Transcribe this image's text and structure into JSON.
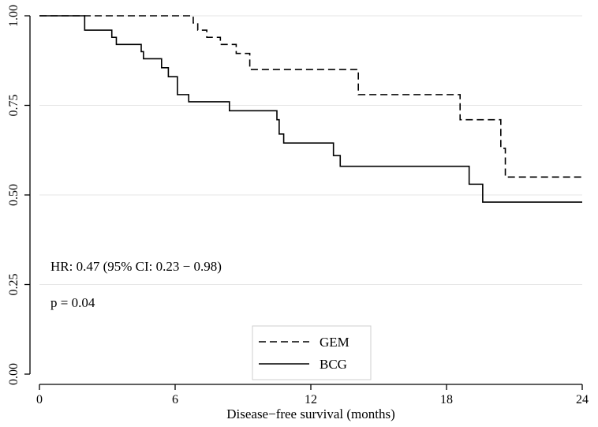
{
  "chart_data": {
    "type": "line",
    "title": "",
    "xlabel": "Disease−free survival (months)",
    "ylabel": "",
    "xlim": [
      0,
      24
    ],
    "ylim": [
      0,
      1
    ],
    "xticks": [
      0,
      6,
      12,
      18,
      24
    ],
    "xtick_labels": [
      "0",
      "6",
      "12",
      "18",
      "24"
    ],
    "yticks": [
      0,
      0.25,
      0.5,
      0.75,
      1
    ],
    "ytick_labels": [
      "0.00",
      "0.25",
      "0.50",
      "0.75",
      "1.00"
    ],
    "grid": "horizontal",
    "legend_position": "bottom-center",
    "annotations": [
      "HR: 0.47 (95% CI: 0.23 − 0.98)",
      "p = 0.04"
    ],
    "series": [
      {
        "name": "GEM",
        "style": "dashed",
        "step_x": [
          0,
          6.8,
          7.0,
          7.4,
          8.0,
          8.7,
          9.3,
          10.9,
          14.1,
          18.6,
          20.4,
          20.6,
          24
        ],
        "step_y": [
          1.0,
          0.98,
          0.96,
          0.94,
          0.92,
          0.895,
          0.85,
          0.85,
          0.78,
          0.71,
          0.63,
          0.55,
          0.55
        ]
      },
      {
        "name": "BCG",
        "style": "solid",
        "step_x": [
          0,
          2.0,
          3.2,
          3.4,
          4.5,
          4.6,
          5.4,
          5.7,
          6.1,
          6.3,
          6.6,
          8.4,
          10.5,
          10.6,
          10.8,
          13.0,
          13.3,
          19.0,
          19.6,
          24
        ],
        "step_y": [
          1.0,
          0.96,
          0.94,
          0.92,
          0.9,
          0.88,
          0.855,
          0.83,
          0.78,
          0.78,
          0.76,
          0.735,
          0.71,
          0.67,
          0.645,
          0.61,
          0.58,
          0.53,
          0.48,
          0.48
        ]
      }
    ]
  }
}
